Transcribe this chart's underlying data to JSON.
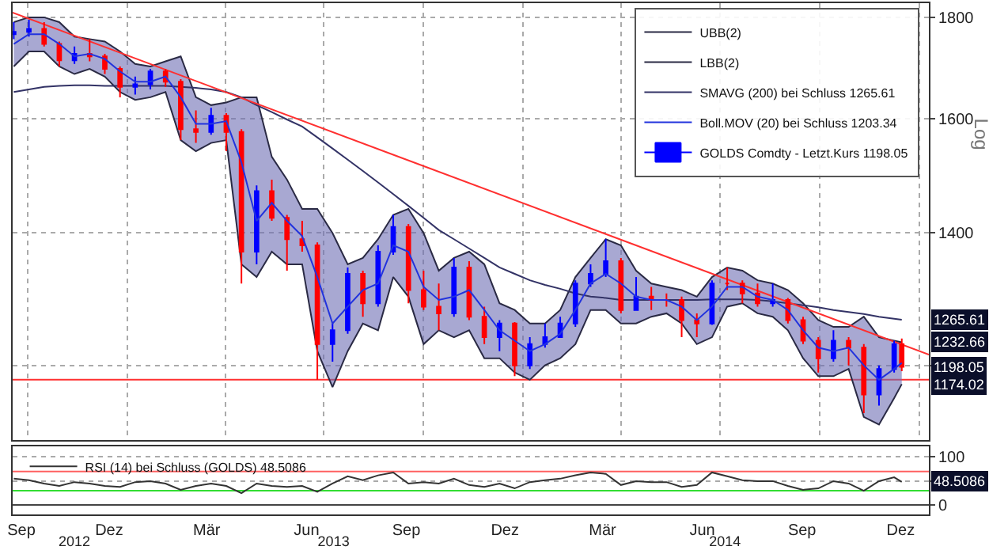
{
  "chart_data": [
    {
      "type": "candlestick",
      "log": true,
      "grid": true,
      "legend": "top right",
      "tick_labels": "y",
      "ylabel": "Log",
      "xlim": [
        "2012-09-17",
        "2015-01-10"
      ],
      "xticks": [
        {
          "value": "2012-10-01",
          "label": null
        },
        {
          "value": "2013-01-01",
          "label": null
        },
        {
          "value": "2013-04-01",
          "label": null
        },
        {
          "value": "2013-07-01",
          "label": null
        },
        {
          "value": "2013-10-01",
          "label": null
        },
        {
          "value": "2014-01-01",
          "label": null
        },
        {
          "value": "2014-04-01",
          "label": null
        },
        {
          "value": "2014-07-01",
          "label": null
        },
        {
          "value": "2014-10-01",
          "label": null
        },
        {
          "value": "2015-01-01",
          "label": null
        }
      ],
      "ylim": [
        1100,
        1830
      ],
      "yticks": [
        {
          "value": 1200,
          "label": null
        },
        1400,
        1600,
        1800
      ],
      "x": [
        "2012-09-18",
        "2012-10-02",
        "2012-10-16",
        "2012-10-30",
        "2012-11-13",
        "2012-11-27",
        "2012-12-11",
        "2012-12-25",
        "2013-01-08",
        "2013-01-22",
        "2013-02-05",
        "2013-02-19",
        "2013-03-05",
        "2013-03-19",
        "2013-04-02",
        "2013-04-16",
        "2013-04-30",
        "2013-05-14",
        "2013-05-28",
        "2013-06-11",
        "2013-06-25",
        "2013-07-09",
        "2013-07-23",
        "2013-08-06",
        "2013-08-20",
        "2013-09-03",
        "2013-09-17",
        "2013-10-01",
        "2013-10-15",
        "2013-10-29",
        "2013-11-12",
        "2013-11-26",
        "2013-12-10",
        "2013-12-24",
        "2014-01-07",
        "2014-01-21",
        "2014-02-04",
        "2014-02-18",
        "2014-03-04",
        "2014-03-18",
        "2014-04-01",
        "2014-04-15",
        "2014-04-29",
        "2014-05-13",
        "2014-05-27",
        "2014-06-10",
        "2014-06-24",
        "2014-07-08",
        "2014-07-22",
        "2014-08-05",
        "2014-08-19",
        "2014-09-02",
        "2014-09-16",
        "2014-09-30",
        "2014-10-14",
        "2014-10-28",
        "2014-11-11",
        "2014-11-25",
        "2014-12-09",
        "2014-12-16"
      ],
      "series": [
        {
          "type": "line",
          "name": "UBB(2)",
          "color": "#2a2a44",
          "values": [
            1790,
            1800,
            1800,
            1790,
            1760,
            1755,
            1750,
            1730,
            1705,
            1700,
            1710,
            1720,
            1640,
            1625,
            1630,
            1640,
            1640,
            1530,
            1490,
            1440,
            1440,
            1400,
            1350,
            1360,
            1390,
            1430,
            1440,
            1400,
            1340,
            1360,
            1370,
            1350,
            1290,
            1280,
            1260,
            1260,
            1280,
            1330,
            1360,
            1390,
            1380,
            1340,
            1320,
            1315,
            1310,
            1300,
            1330,
            1345,
            1340,
            1325,
            1320,
            1310,
            1290,
            1265,
            1255,
            1255,
            1270,
            1240,
            1235,
            1232.66
          ]
        },
        {
          "type": "line",
          "name": "LBB(2)",
          "color": "#2a2a44",
          "values": [
            1700,
            1730,
            1730,
            1700,
            1685,
            1695,
            1680,
            1650,
            1635,
            1640,
            1650,
            1560,
            1540,
            1555,
            1560,
            1350,
            1330,
            1370,
            1350,
            1350,
            1220,
            1170,
            1220,
            1260,
            1250,
            1330,
            1300,
            1230,
            1250,
            1240,
            1250,
            1210,
            1210,
            1190,
            1180,
            1200,
            1210,
            1230,
            1280,
            1280,
            1260,
            1260,
            1270,
            1275,
            1260,
            1230,
            1240,
            1285,
            1290,
            1275,
            1270,
            1250,
            1210,
            1185,
            1185,
            1195,
            1130,
            1120,
            1155,
            1174.02
          ]
        },
        {
          "type": "line",
          "name": "SMAVG (200) bei Schluss 1265.61",
          "color": "#333366",
          "values": [
            1650,
            1655,
            1660,
            1662,
            1663,
            1663,
            1662,
            1662,
            1662,
            1662,
            1662,
            1660,
            1658,
            1655,
            1650,
            1640,
            1625,
            1612,
            1598,
            1585,
            1565,
            1545,
            1525,
            1505,
            1485,
            1465,
            1445,
            1425,
            1405,
            1390,
            1375,
            1360,
            1345,
            1335,
            1325,
            1318,
            1312,
            1305,
            1300,
            1298,
            1295,
            1295,
            1295,
            1295,
            1295,
            1295,
            1296,
            1296,
            1296,
            1295,
            1293,
            1290,
            1287,
            1284,
            1280,
            1277,
            1274,
            1270,
            1267,
            1265.61
          ]
        },
        {
          "type": "line",
          "name": "Boll.MOV (20) bei Schluss 1203.34",
          "color": "#2233dd",
          "upper": [
            1790,
            1800,
            1800,
            1790,
            1760,
            1755,
            1750,
            1730,
            1705,
            1700,
            1710,
            1720,
            1640,
            1625,
            1630,
            1640,
            1640,
            1530,
            1490,
            1440,
            1440,
            1400,
            1350,
            1360,
            1390,
            1430,
            1440,
            1400,
            1340,
            1360,
            1370,
            1350,
            1290,
            1280,
            1260,
            1260,
            1280,
            1330,
            1360,
            1390,
            1380,
            1340,
            1320,
            1315,
            1310,
            1300,
            1330,
            1345,
            1340,
            1325,
            1320,
            1310,
            1290,
            1265,
            1255,
            1255,
            1270,
            1240,
            1235,
            1232.66
          ],
          "lower": [
            1700,
            1730,
            1730,
            1700,
            1685,
            1695,
            1680,
            1650,
            1635,
            1640,
            1650,
            1560,
            1540,
            1555,
            1560,
            1350,
            1330,
            1370,
            1350,
            1350,
            1220,
            1170,
            1220,
            1260,
            1250,
            1330,
            1300,
            1230,
            1250,
            1240,
            1250,
            1210,
            1210,
            1190,
            1180,
            1200,
            1210,
            1230,
            1280,
            1280,
            1260,
            1260,
            1270,
            1275,
            1260,
            1230,
            1240,
            1285,
            1290,
            1275,
            1270,
            1250,
            1210,
            1185,
            1185,
            1195,
            1130,
            1120,
            1155,
            1174.02
          ],
          "values": [
            1745,
            1765,
            1765,
            1745,
            1720,
            1725,
            1715,
            1690,
            1670,
            1670,
            1680,
            1640,
            1590,
            1590,
            1595,
            1520,
            1420,
            1450,
            1420,
            1395,
            1330,
            1260,
            1285,
            1310,
            1320,
            1380,
            1370,
            1315,
            1295,
            1300,
            1310,
            1280,
            1250,
            1235,
            1220,
            1230,
            1245,
            1280,
            1320,
            1335,
            1320,
            1300,
            1295,
            1295,
            1285,
            1265,
            1285,
            1315,
            1315,
            1300,
            1295,
            1280,
            1250,
            1225,
            1220,
            1225,
            1200,
            1180,
            1195,
            1203.34
          ]
        },
        {
          "type": "line",
          "color": "#ff3030",
          "x": [
            "2012-09-17",
            "2015-01-10"
          ],
          "values": [
            1810,
            1215
          ]
        },
        {
          "name": "GOLDS Comdty - Letzt.Kurs 1198.05",
          "colors": [
            "#0000ff",
            "#0000ff",
            "#ff0000",
            "#ff0000",
            "#0000ff",
            "#ff0000",
            "#ff0000",
            "#ff0000",
            "#0000ff",
            "#0000ff",
            "#ff0000",
            "#ff0000",
            "#ff0000",
            "#0000ff",
            "#ff0000",
            "#ff0000",
            "#0000ff",
            "#ff0000",
            "#ff0000",
            "#ff0000",
            "#ff0000",
            "#0000ff",
            "#0000ff",
            "#ff0000",
            "#0000ff",
            "#0000ff",
            "#ff0000",
            "#ff0000",
            "#ff0000",
            "#0000ff",
            "#ff0000",
            "#ff0000",
            "#0000ff",
            "#ff0000",
            "#0000ff",
            "#0000ff",
            "#0000ff",
            "#0000ff",
            "#0000ff",
            "#0000ff",
            "#ff0000",
            "#0000ff",
            "#ff0000",
            "#ff0000",
            "#ff0000",
            "#ff0000",
            "#0000ff",
            "#ff0000",
            "#ff0000",
            "#ff0000",
            "#0000ff",
            "#ff0000",
            "#ff0000",
            "#ff0000",
            "#0000ff",
            "#ff0000",
            "#ff0000",
            "#0000ff",
            "#0000ff",
            "#ff0000"
          ],
          "ohlc": [
            [
              1765,
              1790,
              1755,
              1770
            ],
            [
              1770,
              1795,
              1760,
              1776
            ],
            [
              1776,
              1790,
              1740,
              1745
            ],
            [
              1745,
              1750,
              1700,
              1712
            ],
            [
              1712,
              1740,
              1705,
              1725
            ],
            [
              1725,
              1755,
              1710,
              1720
            ],
            [
              1720,
              1725,
              1685,
              1695
            ],
            [
              1695,
              1700,
              1640,
              1660
            ],
            [
              1660,
              1680,
              1645,
              1665
            ],
            [
              1665,
              1695,
              1655,
              1690
            ],
            [
              1690,
              1695,
              1660,
              1670
            ],
            [
              1670,
              1675,
              1560,
              1580
            ],
            [
              1580,
              1615,
              1555,
              1575
            ],
            [
              1575,
              1620,
              1570,
              1605
            ],
            [
              1605,
              1610,
              1540,
              1575
            ],
            [
              1575,
              1580,
              1320,
              1370
            ],
            [
              1370,
              1480,
              1350,
              1470
            ],
            [
              1470,
              1490,
              1420,
              1425
            ],
            [
              1425,
              1430,
              1340,
              1390
            ],
            [
              1390,
              1420,
              1370,
              1380
            ],
            [
              1380,
              1385,
              1180,
              1230
            ],
            [
              1230,
              1260,
              1205,
              1250
            ],
            [
              1250,
              1345,
              1245,
              1335
            ],
            [
              1335,
              1340,
              1270,
              1290
            ],
            [
              1290,
              1380,
              1285,
              1370
            ],
            [
              1370,
              1430,
              1365,
              1410
            ],
            [
              1410,
              1415,
              1290,
              1310
            ],
            [
              1310,
              1340,
              1280,
              1285
            ],
            [
              1285,
              1320,
              1250,
              1275
            ],
            [
              1275,
              1360,
              1270,
              1345
            ],
            [
              1345,
              1355,
              1265,
              1270
            ],
            [
              1270,
              1285,
              1230,
              1240
            ],
            [
              1240,
              1265,
              1220,
              1260
            ],
            [
              1260,
              1262,
              1185,
              1200
            ],
            [
              1200,
              1240,
              1195,
              1230
            ],
            [
              1230,
              1260,
              1225,
              1240
            ],
            [
              1240,
              1270,
              1240,
              1260
            ],
            [
              1260,
              1325,
              1255,
              1320
            ],
            [
              1320,
              1350,
              1315,
              1335
            ],
            [
              1335,
              1390,
              1330,
              1355
            ],
            [
              1355,
              1360,
              1275,
              1280
            ],
            [
              1280,
              1330,
              1280,
              1300
            ],
            [
              1300,
              1315,
              1280,
              1295
            ],
            [
              1295,
              1305,
              1285,
              1295
            ],
            [
              1295,
              1300,
              1240,
              1265
            ],
            [
              1265,
              1275,
              1240,
              1260
            ],
            [
              1260,
              1325,
              1258,
              1320
            ],
            [
              1320,
              1345,
              1310,
              1320
            ],
            [
              1320,
              1325,
              1290,
              1305
            ],
            [
              1305,
              1320,
              1285,
              1290
            ],
            [
              1290,
              1320,
              1285,
              1295
            ],
            [
              1295,
              1298,
              1260,
              1265
            ],
            [
              1265,
              1270,
              1230,
              1235
            ],
            [
              1235,
              1240,
              1190,
              1210
            ],
            [
              1210,
              1250,
              1205,
              1235
            ],
            [
              1235,
              1240,
              1200,
              1225
            ],
            [
              1225,
              1230,
              1135,
              1160
            ],
            [
              1160,
              1200,
              1145,
              1195
            ],
            [
              1195,
              1235,
              1190,
              1230
            ],
            [
              1230,
              1238,
              1192,
              1198.05
            ]
          ]
        }
      ],
      "ref_lines": [
        {
          "axis": "y",
          "value": 1180,
          "color": "#ff3030"
        }
      ],
      "annotations": [
        {
          "text": "1265.61",
          "y": 1265.61
        },
        {
          "text": "1232.66",
          "y": 1232.66
        },
        {
          "text": "1198.05",
          "y": 1198.05
        },
        {
          "text": "1174.02",
          "y": 1174.02
        }
      ]
    },
    {
      "type": "line",
      "grid": "y",
      "legend": "top left",
      "xlim": [
        "2012-09-17",
        "2015-01-10"
      ],
      "xticks": [
        {
          "value": "2012-09-25",
          "label": "Sep"
        },
        {
          "value": "2012-12-15",
          "label": "Dez"
        },
        {
          "value": "2013-03-15",
          "label": "Mär"
        },
        {
          "value": "2013-06-15",
          "label": "Jun"
        },
        {
          "value": "2013-09-15",
          "label": "Sep"
        },
        {
          "value": "2013-12-15",
          "label": "Dez"
        },
        {
          "value": "2014-03-15",
          "label": "Mär"
        },
        {
          "value": "2014-06-15",
          "label": "Jun"
        },
        {
          "value": "2014-09-15",
          "label": "Sep"
        },
        {
          "value": "2014-12-15",
          "label": "Dez"
        }
      ],
      "x2lim": [
        "2012-09-17",
        "2015-01-10"
      ],
      "x2ticks": [
        {
          "value": "2012-11-13",
          "label": "2012"
        },
        {
          "value": "2013-07-10",
          "label": "2013"
        },
        {
          "value": "2014-07-06",
          "label": "2014"
        }
      ],
      "ylim": [
        -19,
        122
      ],
      "yticks": [
        0,
        {
          "value": 50,
          "label": null
        },
        100
      ],
      "x": [
        "2012-09-18",
        "2012-10-02",
        "2012-10-16",
        "2012-10-30",
        "2012-11-13",
        "2012-11-27",
        "2012-12-11",
        "2012-12-25",
        "2013-01-08",
        "2013-01-22",
        "2013-02-05",
        "2013-02-19",
        "2013-03-05",
        "2013-03-19",
        "2013-04-02",
        "2013-04-16",
        "2013-04-30",
        "2013-05-14",
        "2013-05-28",
        "2013-06-11",
        "2013-06-25",
        "2013-07-09",
        "2013-07-23",
        "2013-08-06",
        "2013-08-20",
        "2013-09-03",
        "2013-09-17",
        "2013-10-01",
        "2013-10-15",
        "2013-10-29",
        "2013-11-12",
        "2013-11-26",
        "2013-12-10",
        "2013-12-24",
        "2014-01-07",
        "2014-01-21",
        "2014-02-04",
        "2014-02-18",
        "2014-03-04",
        "2014-03-18",
        "2014-04-01",
        "2014-04-15",
        "2014-04-29",
        "2014-05-13",
        "2014-05-27",
        "2014-06-10",
        "2014-06-24",
        "2014-07-08",
        "2014-07-22",
        "2014-08-05",
        "2014-08-19",
        "2014-09-02",
        "2014-09-16",
        "2014-09-30",
        "2014-10-14",
        "2014-10-28",
        "2014-11-11",
        "2014-11-25",
        "2014-12-09",
        "2014-12-16"
      ],
      "series": [
        {
          "name": "RSI (14) bei Schluss (GOLDS) 48.5086",
          "color": "#333333",
          "values": [
            55,
            52,
            45,
            40,
            48,
            45,
            40,
            38,
            48,
            50,
            45,
            32,
            40,
            45,
            40,
            25,
            45,
            40,
            38,
            40,
            28,
            45,
            60,
            52,
            62,
            68,
            45,
            48,
            45,
            55,
            42,
            38,
            45,
            35,
            48,
            52,
            55,
            62,
            68,
            65,
            42,
            50,
            48,
            48,
            38,
            42,
            68,
            60,
            52,
            50,
            50,
            40,
            32,
            35,
            50,
            45,
            30,
            50,
            58,
            48.5086
          ]
        }
      ],
      "ref_lines": [
        {
          "axis": "y",
          "value": 70,
          "color": "#ff6060"
        },
        {
          "axis": "y",
          "value": 30,
          "color": "#33dd33"
        }
      ],
      "annotations": [
        {
          "text": "48.5086",
          "y": 48.5086
        }
      ]
    }
  ]
}
